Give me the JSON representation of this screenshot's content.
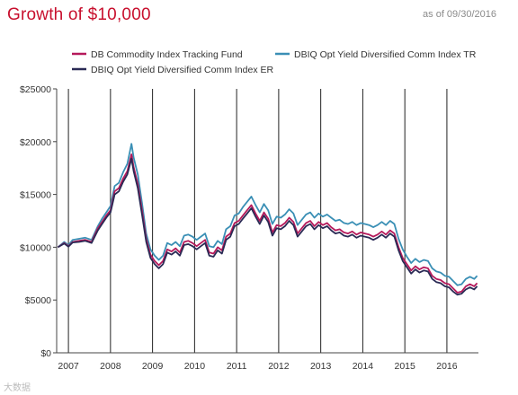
{
  "header": {
    "title": "Growth of $10,000",
    "as_of": "as of 09/30/2016"
  },
  "watermark": "大数据",
  "colors": {
    "dbc": "#b5195b",
    "tr": "#3a8fb5",
    "er": "#2a2a55",
    "year_line": "#222222",
    "axis": "#444444"
  },
  "chart_data": {
    "type": "line",
    "title": "Growth of $10,000",
    "xlabel": "",
    "ylabel": "",
    "xlim": [
      2006.72,
      2016.75
    ],
    "ylim": [
      0,
      25000
    ],
    "y_ticks": [
      "$0",
      "$5000",
      "$10000",
      "$15000",
      "$20000",
      "$25000"
    ],
    "y_tick_values": [
      0,
      5000,
      10000,
      15000,
      20000,
      25000
    ],
    "x_ticks": [
      "2007",
      "2008",
      "2009",
      "2010",
      "2011",
      "2012",
      "2013",
      "2014",
      "2015",
      "2016"
    ],
    "x_tick_values": [
      2007,
      2008,
      2009,
      2010,
      2011,
      2012,
      2013,
      2014,
      2015,
      2016
    ],
    "grid": "vertical year lines",
    "legend_position": "top",
    "x": [
      2006.75,
      2006.9,
      2007.0,
      2007.1,
      2007.25,
      2007.4,
      2007.55,
      2007.7,
      2007.8,
      2007.9,
      2008.0,
      2008.1,
      2008.2,
      2008.3,
      2008.4,
      2008.5,
      2008.55,
      2008.65,
      2008.75,
      2008.85,
      2008.95,
      2009.05,
      2009.15,
      2009.25,
      2009.35,
      2009.45,
      2009.55,
      2009.65,
      2009.75,
      2009.85,
      2009.95,
      2010.05,
      2010.15,
      2010.25,
      2010.35,
      2010.45,
      2010.55,
      2010.65,
      2010.75,
      2010.85,
      2010.95,
      2011.05,
      2011.15,
      2011.25,
      2011.35,
      2011.45,
      2011.55,
      2011.65,
      2011.75,
      2011.85,
      2011.95,
      2012.05,
      2012.15,
      2012.25,
      2012.35,
      2012.45,
      2012.55,
      2012.65,
      2012.75,
      2012.85,
      2012.95,
      2013.05,
      2013.15,
      2013.25,
      2013.35,
      2013.45,
      2013.55,
      2013.65,
      2013.75,
      2013.85,
      2013.95,
      2014.05,
      2014.15,
      2014.25,
      2014.35,
      2014.45,
      2014.55,
      2014.65,
      2014.75,
      2014.85,
      2014.95,
      2015.05,
      2015.15,
      2015.25,
      2015.35,
      2015.45,
      2015.55,
      2015.65,
      2015.75,
      2015.85,
      2015.95,
      2016.05,
      2016.15,
      2016.25,
      2016.35,
      2016.45,
      2016.55,
      2016.65,
      2016.72
    ],
    "series": [
      {
        "name": "DB Commodity Index Tracking Fund",
        "color_key": "dbc",
        "values": [
          10000,
          10400,
          10100,
          10500,
          10600,
          10700,
          10500,
          11800,
          12400,
          13000,
          13500,
          15300,
          15600,
          16500,
          17200,
          18800,
          17600,
          16000,
          13500,
          10800,
          9300,
          8700,
          8300,
          8700,
          9800,
          9600,
          9900,
          9500,
          10500,
          10600,
          10400,
          10100,
          10400,
          10700,
          9500,
          9400,
          10000,
          9700,
          11000,
          11300,
          12300,
          12500,
          13000,
          13500,
          14000,
          13200,
          12500,
          13300,
          12700,
          11400,
          12100,
          12000,
          12300,
          12800,
          12400,
          11300,
          11800,
          12300,
          12500,
          12000,
          12400,
          12100,
          12300,
          11900,
          11600,
          11700,
          11400,
          11300,
          11500,
          11200,
          11400,
          11300,
          11200,
          11000,
          11200,
          11500,
          11200,
          11600,
          11300,
          10000,
          9000,
          8400,
          7800,
          8200,
          7900,
          8100,
          8000,
          7300,
          7000,
          6900,
          6600,
          6500,
          6100,
          5700,
          5800,
          6300,
          6500,
          6300,
          6600
        ]
      },
      {
        "name": "DBIQ Opt Yield Diversified Comm Index TR",
        "color_key": "tr",
        "values": [
          10000,
          10500,
          10200,
          10700,
          10800,
          10900,
          10700,
          12000,
          12700,
          13300,
          13900,
          15800,
          16100,
          17100,
          17900,
          19800,
          18500,
          16900,
          14200,
          11300,
          9800,
          9200,
          8800,
          9200,
          10400,
          10200,
          10500,
          10100,
          11100,
          11200,
          11000,
          10700,
          11000,
          11300,
          10100,
          10000,
          10600,
          10300,
          11700,
          12000,
          13000,
          13200,
          13800,
          14300,
          14800,
          14000,
          13300,
          14100,
          13500,
          12200,
          12900,
          12800,
          13100,
          13600,
          13200,
          12100,
          12600,
          13100,
          13300,
          12800,
          13200,
          12900,
          13100,
          12800,
          12500,
          12600,
          12300,
          12200,
          12400,
          12100,
          12300,
          12200,
          12100,
          11900,
          12100,
          12400,
          12100,
          12500,
          12200,
          10800,
          9800,
          9100,
          8500,
          8900,
          8600,
          8800,
          8700,
          8000,
          7700,
          7600,
          7300,
          7200,
          6800,
          6400,
          6500,
          7000,
          7200,
          7000,
          7300
        ]
      },
      {
        "name": "DBIQ Opt Yield Diversified Comm Index ER",
        "color_key": "er",
        "values": [
          10000,
          10350,
          10050,
          10450,
          10500,
          10600,
          10400,
          11600,
          12200,
          12800,
          13300,
          15000,
          15300,
          16200,
          16900,
          18400,
          17200,
          15600,
          13100,
          10500,
          9000,
          8400,
          8000,
          8400,
          9500,
          9300,
          9600,
          9200,
          10200,
          10300,
          10100,
          9800,
          10100,
          10400,
          9200,
          9100,
          9700,
          9400,
          10700,
          11000,
          12000,
          12200,
          12700,
          13200,
          13700,
          12900,
          12200,
          13000,
          12400,
          11100,
          11800,
          11700,
          12000,
          12500,
          12100,
          11000,
          11500,
          12000,
          12200,
          11700,
          12100,
          11800,
          12000,
          11600,
          11300,
          11400,
          11100,
          11000,
          11200,
          10900,
          11100,
          11000,
          10900,
          10700,
          10900,
          11200,
          10900,
          11300,
          11000,
          9700,
          8700,
          8100,
          7500,
          7900,
          7600,
          7800,
          7700,
          7000,
          6700,
          6600,
          6300,
          6200,
          5800,
          5500,
          5600,
          6000,
          6200,
          6000,
          6300
        ]
      }
    ]
  }
}
